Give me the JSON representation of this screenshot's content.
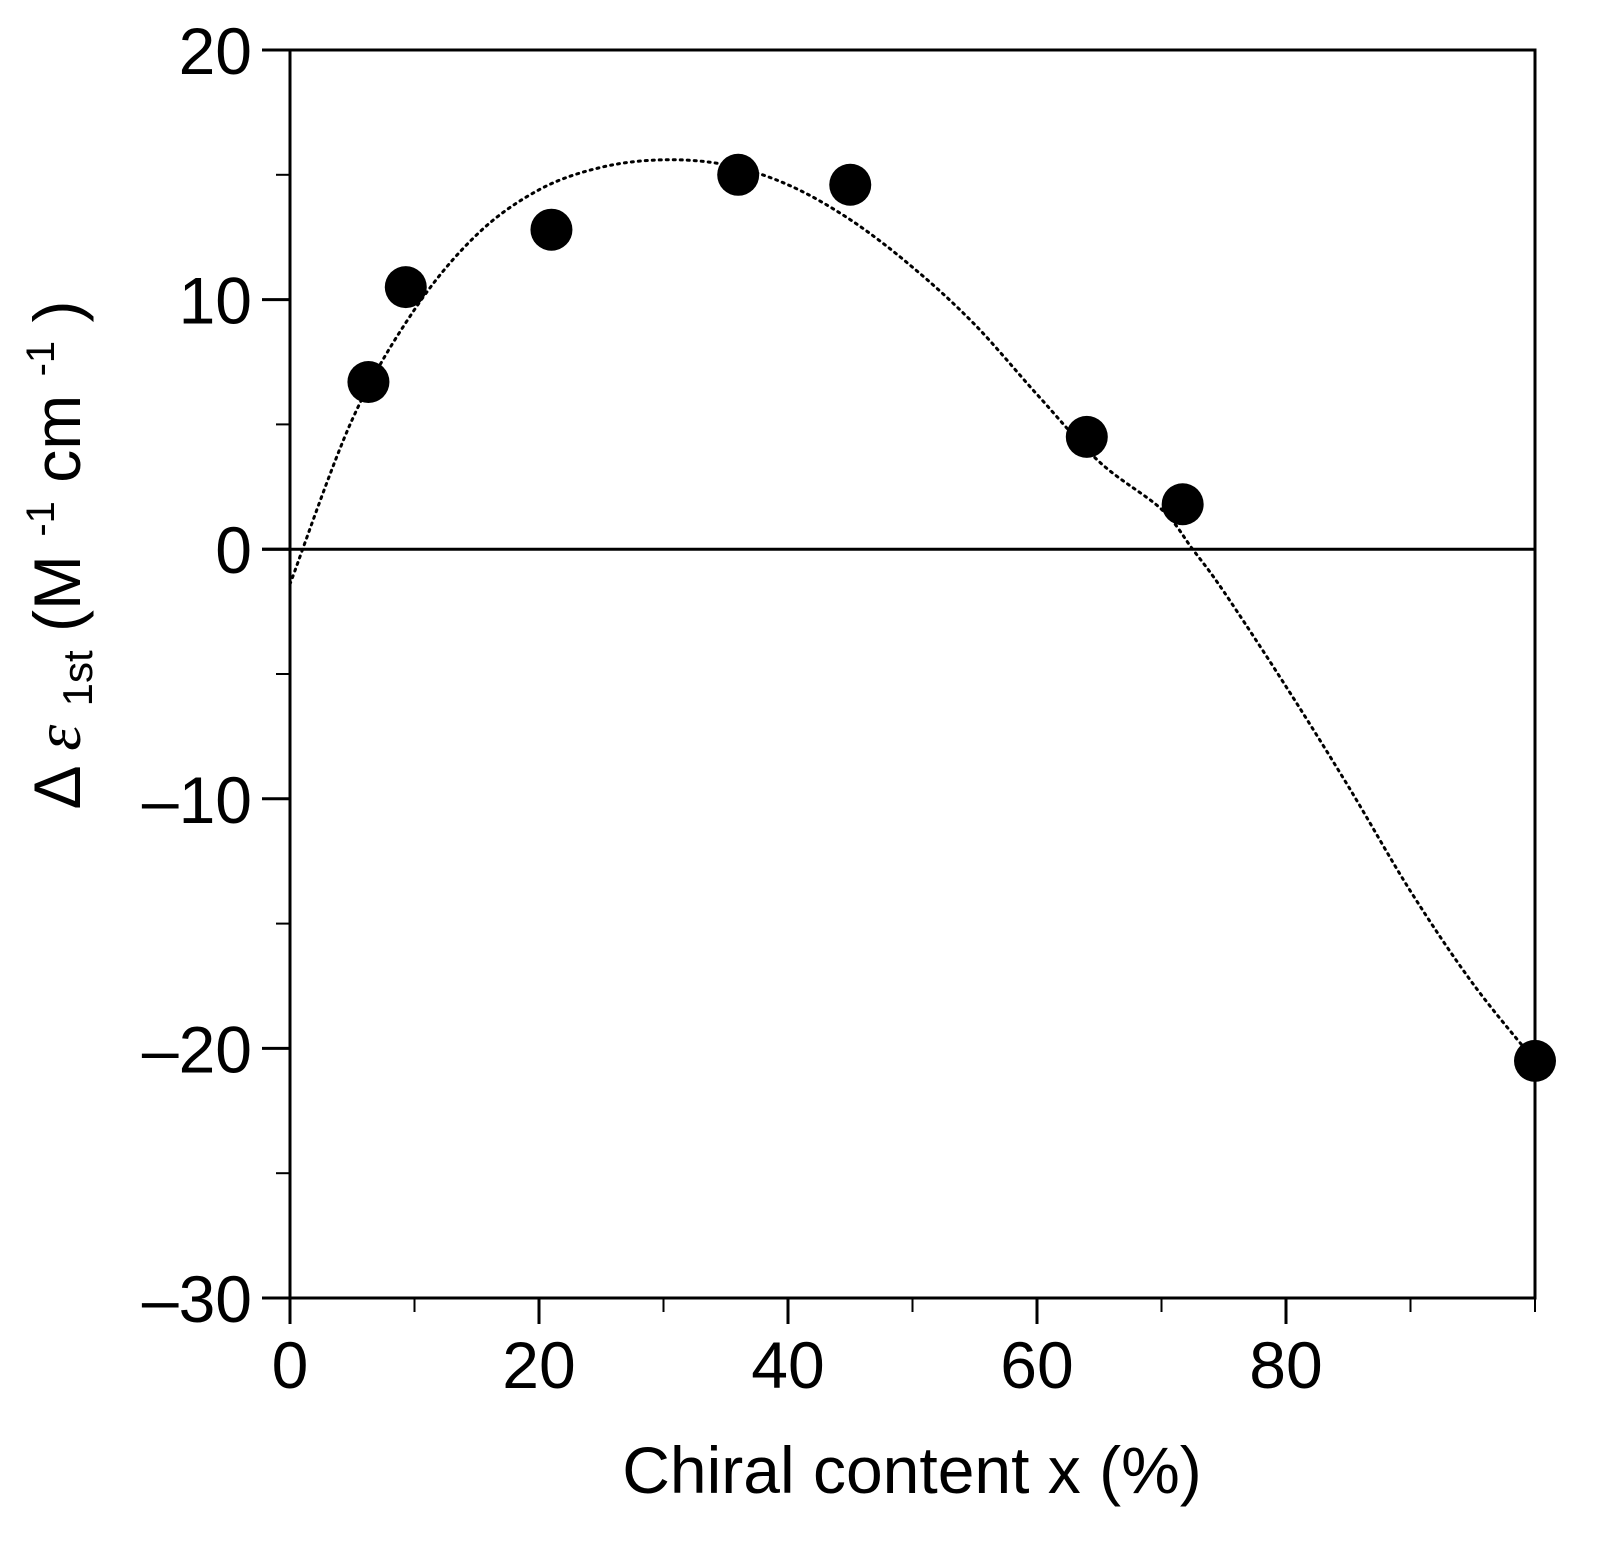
{
  "chart_data": {
    "type": "scatter",
    "title": "",
    "xlabel": "Chiral content x (%)",
    "ylabel": {
      "delta": "Δ",
      "epsilon": "ε",
      "subscript": "1st",
      "open": " (M",
      "sup1": "-1",
      "mid": " cm",
      "sup2": "-1",
      "close": " )"
    },
    "xlim": [
      0,
      100
    ],
    "ylim": [
      -30,
      20
    ],
    "x_ticks": [
      {
        "value": 0,
        "label": "0"
      },
      {
        "value": 20,
        "label": "20"
      },
      {
        "value": 40,
        "label": "40"
      },
      {
        "value": 60,
        "label": "60"
      },
      {
        "value": 80,
        "label": "80"
      }
    ],
    "x_minor_ticks": [
      10,
      30,
      50,
      70,
      90,
      100
    ],
    "y_ticks": [
      {
        "value": 20,
        "label": "20"
      },
      {
        "value": 10,
        "label": "10"
      },
      {
        "value": 0,
        "label": "0"
      },
      {
        "value": -10,
        "label": "–10"
      },
      {
        "value": -20,
        "label": "–20"
      },
      {
        "value": -30,
        "label": "–30"
      }
    ],
    "y_minor_ticks": [
      15,
      5,
      -5,
      -15,
      -25
    ],
    "grid": false,
    "zero_line": true,
    "series": [
      {
        "marker": "filled-circle",
        "color": "#000000",
        "points": [
          {
            "x": 6.3,
            "y": 6.7
          },
          {
            "x": 9.3,
            "y": 10.5
          },
          {
            "x": 21,
            "y": 12.8
          },
          {
            "x": 36,
            "y": 15.0
          },
          {
            "x": 45,
            "y": 14.6
          },
          {
            "x": 64,
            "y": 4.5
          },
          {
            "x": 71.7,
            "y": 1.8
          },
          {
            "x": 100,
            "y": -20.5
          }
        ]
      }
    ],
    "fit_curve": {
      "style": "dotted",
      "color": "#000000",
      "points": [
        {
          "x": 0,
          "y": -1.4
        },
        {
          "x": 5,
          "y": 5.2
        },
        {
          "x": 10,
          "y": 9.6
        },
        {
          "x": 15,
          "y": 12.6
        },
        {
          "x": 20,
          "y": 14.4
        },
        {
          "x": 25,
          "y": 15.3
        },
        {
          "x": 30,
          "y": 15.6
        },
        {
          "x": 35,
          "y": 15.4
        },
        {
          "x": 40,
          "y": 14.6
        },
        {
          "x": 45,
          "y": 13.2
        },
        {
          "x": 50,
          "y": 11.3
        },
        {
          "x": 55,
          "y": 9.0
        },
        {
          "x": 60,
          "y": 6.2
        },
        {
          "x": 65,
          "y": 3.5
        },
        {
          "x": 70,
          "y": 1.6
        },
        {
          "x": 72.5,
          "y": 0
        },
        {
          "x": 75,
          "y": -1.7
        },
        {
          "x": 80,
          "y": -5.5
        },
        {
          "x": 85,
          "y": -9.5
        },
        {
          "x": 90,
          "y": -13.7
        },
        {
          "x": 95,
          "y": -17.4
        },
        {
          "x": 100,
          "y": -20.5
        }
      ]
    }
  }
}
